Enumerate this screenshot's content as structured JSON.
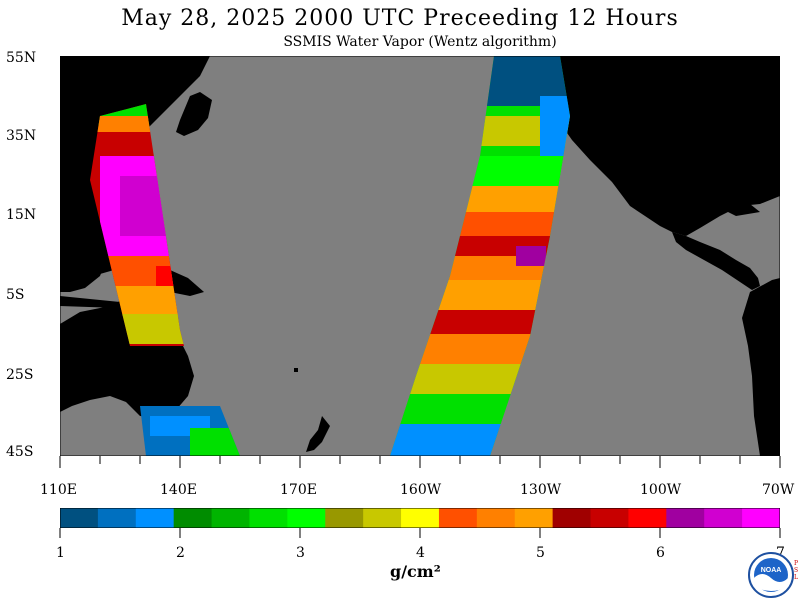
{
  "title": "May 28, 2025  2000 UTC  Preceeding 12 Hours",
  "subtitle": "SSMIS Water Vapor (Wentz algorithm)",
  "y_axis_labels": [
    "55N",
    "35N",
    "15N",
    "5S",
    "25S",
    "45S"
  ],
  "x_axis_labels": [
    "110E",
    "140E",
    "170E",
    "160W",
    "130W",
    "100W",
    "70W"
  ],
  "colorbar": {
    "colors": [
      "#005080",
      "#0070c0",
      "#0090ff",
      "#008c00",
      "#00b400",
      "#00e000",
      "#00ff00",
      "#989800",
      "#c8c800",
      "#ffff00",
      "#ff5000",
      "#ff8000",
      "#ffa000",
      "#a00000",
      "#c80000",
      "#ff0000",
      "#a000a0",
      "#d000d0",
      "#ff00ff"
    ],
    "ticks": [
      "1",
      "2",
      "3",
      "4",
      "5",
      "6",
      "7"
    ]
  },
  "units_label": "g/cm²",
  "logo": {
    "text": "NOAA",
    "side_text": "PSL"
  },
  "palette": {
    "ocean": "#7f7f7f",
    "land": "#000000"
  }
}
